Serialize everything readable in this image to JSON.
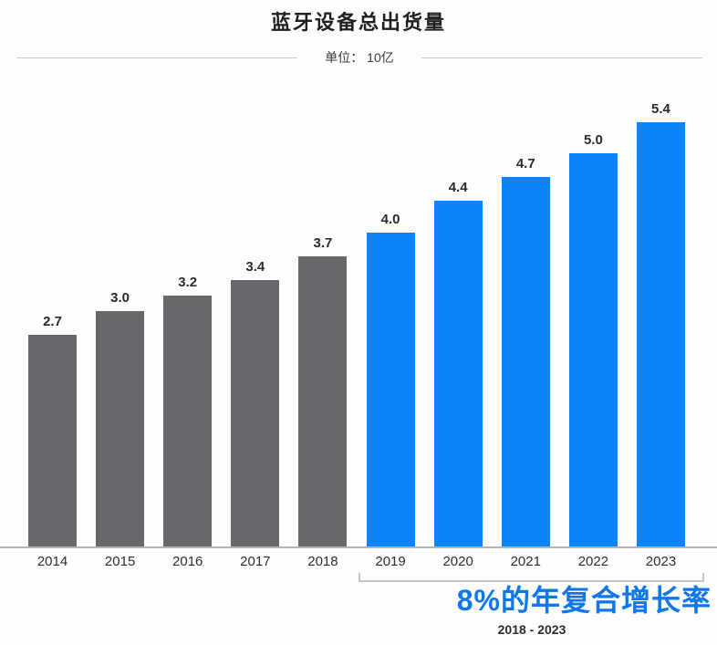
{
  "title": "蓝牙设备总出货量",
  "subtitle": "单位： 10亿",
  "chart_data": {
    "type": "bar",
    "title": "蓝牙设备总出货量",
    "unit_label": "单位： 10亿",
    "categories": [
      "2014",
      "2015",
      "2016",
      "2017",
      "2018",
      "2019",
      "2020",
      "2021",
      "2022",
      "2023"
    ],
    "values": [
      2.7,
      3.0,
      3.2,
      3.4,
      3.7,
      4.0,
      4.4,
      4.7,
      5.0,
      5.4
    ],
    "value_labels": [
      "2.7",
      "3.0",
      "3.2",
      "3.4",
      "3.7",
      "4.0",
      "4.4",
      "4.7",
      "5.0",
      "5.4"
    ],
    "highlight_start_index": 5,
    "ylim": [
      0,
      5.8
    ],
    "grid": false,
    "legend": false,
    "xlabel": "",
    "ylabel": ""
  },
  "annotation": {
    "cagr_text": "8%的年复合增长率",
    "range_text": "2018 - 2023"
  },
  "colors": {
    "bar_base": "#67676c",
    "bar_highlight": "#0b84f8",
    "cagr_text": "#0e78ea",
    "axis_line": "#b5b5b5",
    "bracket": "#c6c6c6"
  }
}
